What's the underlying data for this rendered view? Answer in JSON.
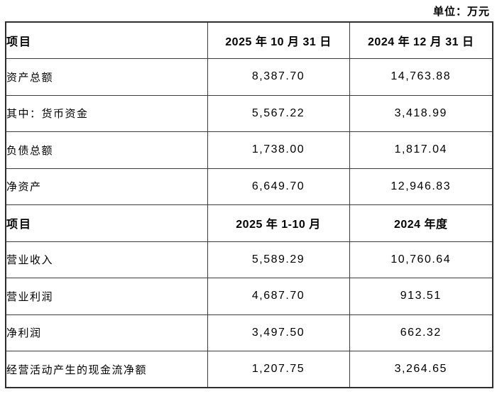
{
  "unit_label": "单位：万元",
  "table": {
    "sections": [
      {
        "header": [
          "项目",
          "2025 年 10 月 31 日",
          "2024 年 12 月 31 日"
        ],
        "rows": [
          [
            "资产总额",
            "8,387.70",
            "14,763.88"
          ],
          [
            "其中：货币资金",
            "5,567.22",
            "3,418.99"
          ],
          [
            "负债总额",
            "1,738.00",
            "1,817.04"
          ],
          [
            "净资产",
            "6,649.70",
            "12,946.83"
          ]
        ]
      },
      {
        "header": [
          "项目",
          "2025 年 1-10 月",
          "2024 年度"
        ],
        "rows": [
          [
            "营业收入",
            "5,589.29",
            "10,760.64"
          ],
          [
            "营业利润",
            "4,687.70",
            "913.51"
          ],
          [
            "净利润",
            "3,497.50",
            "662.32"
          ],
          [
            "经营活动产生的现金流净额",
            "1,207.75",
            "3,264.65"
          ]
        ]
      }
    ]
  },
  "colors": {
    "background": "#ffffff",
    "text": "#000000",
    "border_inner": "#3a3a3a",
    "border_outer": "#2e2e2e"
  }
}
